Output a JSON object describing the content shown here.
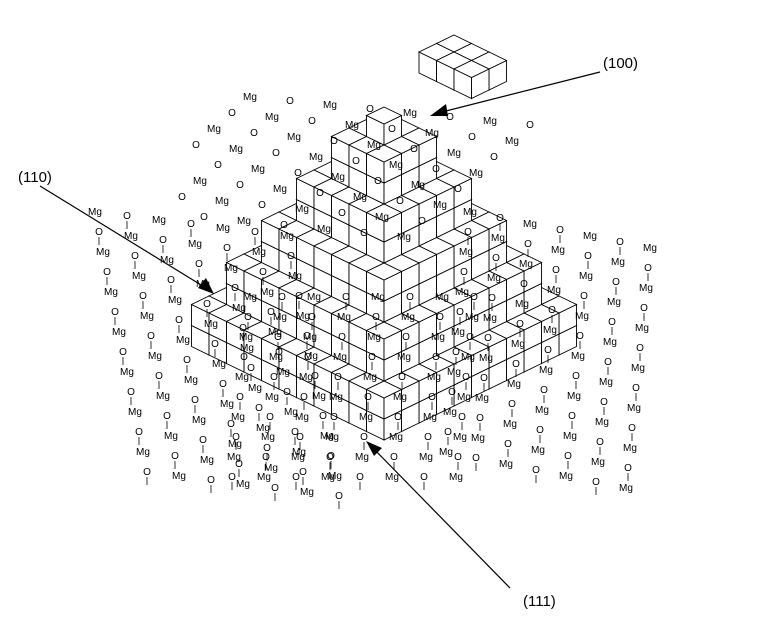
{
  "labels": {
    "face_100": "(100)",
    "face_110": "(110)",
    "face_111": "(111)"
  },
  "atoms": {
    "cation": "Mg",
    "anion": "O"
  },
  "colors": {
    "stroke": "#000000",
    "top_face": "#ffffff",
    "left_face": "#ffffff",
    "right_face": "#ffffff"
  }
}
